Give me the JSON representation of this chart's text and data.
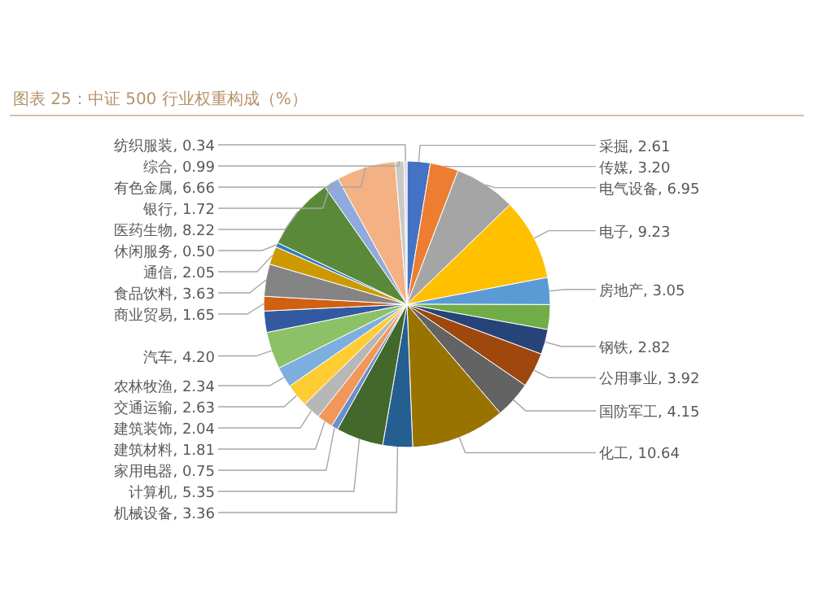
{
  "chart_data": {
    "type": "pie",
    "title": "图表 25：中证 500 行业权重构成（%）",
    "categories": [
      "采掘",
      "传媒",
      "电气设备",
      "电子",
      "房地产",
      null,
      "钢铁",
      "公用事业",
      "国防军工",
      "化工",
      "机械设备",
      "计算机",
      "家用电器",
      "建筑材料",
      "建筑装饰",
      "交通运输",
      "农林牧渔",
      "汽车",
      null,
      "商业贸易",
      "食品饮料",
      "通信",
      "休闲服务",
      "医药生物",
      "银行",
      "有色金属",
      "综合",
      "纺织服装"
    ],
    "values": [
      2.61,
      3.2,
      6.95,
      9.23,
      3.05,
      2.8,
      2.82,
      3.92,
      4.15,
      10.64,
      3.36,
      5.35,
      0.75,
      1.81,
      2.04,
      2.63,
      2.34,
      4.2,
      2.4,
      1.65,
      3.63,
      2.05,
      0.5,
      8.22,
      1.72,
      6.66,
      0.99,
      0.34
    ],
    "value_labels": [
      "2.61",
      "3.20",
      "6.95",
      "9.23",
      "3.05",
      null,
      "2.82",
      "3.92",
      "4.15",
      "10.64",
      "3.36",
      "5.35",
      "0.75",
      "1.81",
      "2.04",
      "2.63",
      "2.34",
      "4.20",
      null,
      "1.65",
      "3.63",
      "2.05",
      "0.50",
      "8.22",
      "1.72",
      "6.66",
      "0.99",
      "0.34"
    ],
    "colors": [
      "#4472c4",
      "#ed7d31",
      "#a5a5a5",
      "#ffc000",
      "#5b9bd5",
      "#70ad47",
      "#264478",
      "#9e480e",
      "#636363",
      "#997300",
      "#255e91",
      "#43682b",
      "#698ed0",
      "#f1975a",
      "#b7b7b7",
      "#ffcd33",
      "#7cafdd",
      "#8cc168",
      "#335aa1",
      "#d26012",
      "#848484",
      "#cc9a00",
      "#327dc2",
      "#5a8a39",
      "#8faadc",
      "#f4b183",
      "#c9c9c9",
      "#dbdbdb"
    ]
  }
}
